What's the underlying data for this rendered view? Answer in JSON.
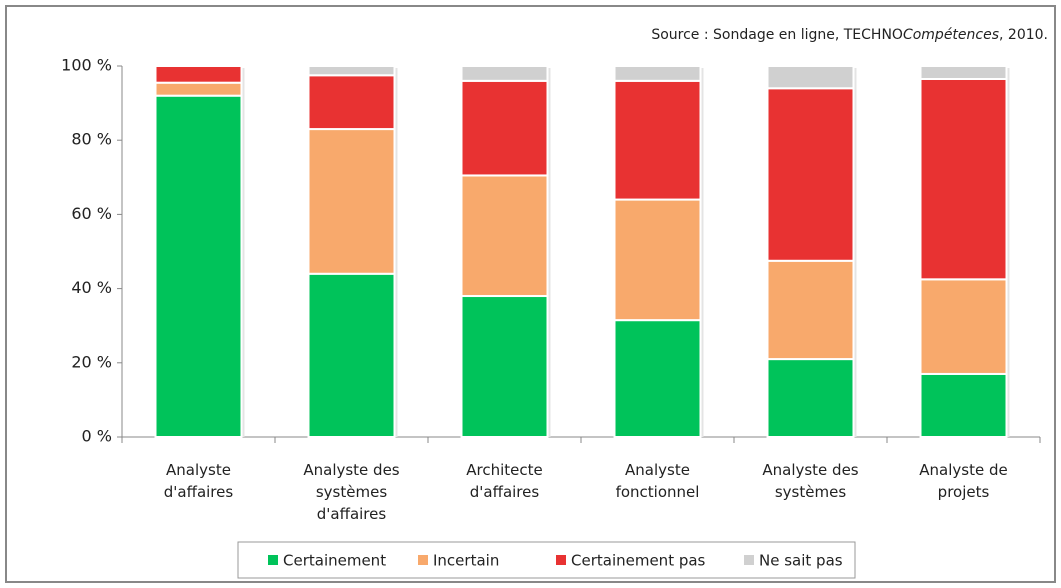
{
  "chart_data": {
    "type": "stacked_bar",
    "source": [
      "Source : Sondage en ligne, TECHNO",
      "Compétences",
      ", 2010."
    ],
    "categories": [
      "Analyste\nd'affaires",
      "Analyste des\nsystèmes\nd'affaires",
      "Architecte\nd'affaires",
      "Analyste\nfonctionnel",
      "Analyste des\nsystèmes",
      "Analyste de\nprojets"
    ],
    "series": [
      {
        "name": "Certainement",
        "color": "#00c35a",
        "values": [
          92,
          44,
          38,
          31.5,
          21,
          17
        ]
      },
      {
        "name": "Incertain",
        "color": "#f8a96c",
        "values": [
          3.5,
          39,
          32.5,
          32.5,
          26.5,
          25.5
        ]
      },
      {
        "name": "Certainement pas",
        "color": "#e83232",
        "values": [
          4.5,
          14.5,
          25.5,
          32,
          46.5,
          54
        ]
      },
      {
        "name": "Ne sait pas",
        "color": "#d0d0d0",
        "values": [
          0,
          2.5,
          4,
          4,
          6,
          3.5
        ]
      }
    ],
    "ylim": [
      0,
      100
    ],
    "yticks": [
      {
        "value": 0,
        "label": "0 %"
      },
      {
        "value": 20,
        "label": "20 %"
      },
      {
        "value": 40,
        "label": "40 %"
      },
      {
        "value": 60,
        "label": "60 %"
      },
      {
        "value": 80,
        "label": "80 %"
      },
      {
        "value": 100,
        "label": "100 %"
      }
    ],
    "legend": "bottom"
  }
}
